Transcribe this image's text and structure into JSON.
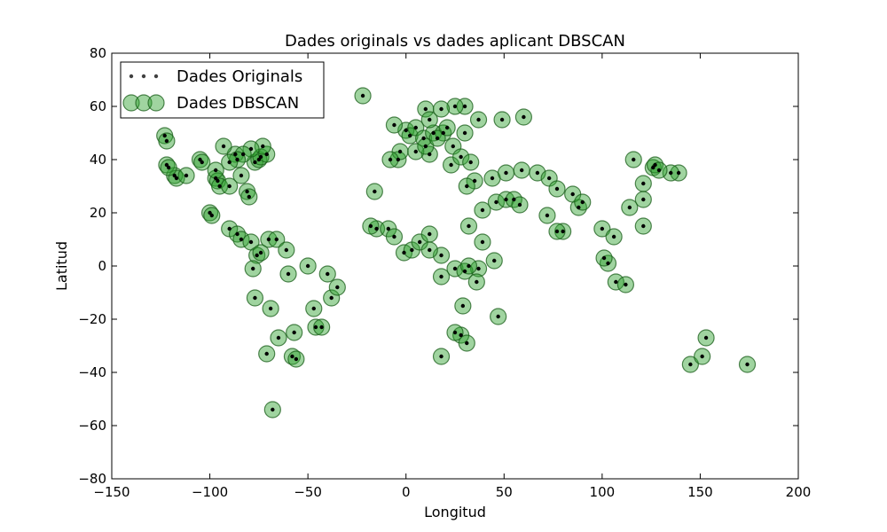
{
  "chart_data": {
    "type": "scatter",
    "title": "Dades originals vs dades aplicant DBSCAN",
    "xlabel": "Longitud",
    "ylabel": "Latitud",
    "xlim": [
      -150,
      200
    ],
    "ylim": [
      -80,
      80
    ],
    "xticks": [
      "−150",
      "−100",
      "−50",
      "0",
      "50",
      "100",
      "150",
      "200"
    ],
    "yticks": [
      "80",
      "60",
      "40",
      "20",
      "0",
      "−20",
      "−40",
      "−60",
      "−80"
    ],
    "grid": false,
    "legend_position": "top-left",
    "series": [
      {
        "name": "Dades Originals",
        "color": "#000000",
        "marker": "small-dot",
        "points": [
          [
            -123,
            49
          ],
          [
            -122,
            47
          ],
          [
            -118,
            34
          ],
          [
            -117,
            33
          ],
          [
            -122,
            38
          ],
          [
            -121,
            37
          ],
          [
            -112,
            34
          ],
          [
            -105,
            40
          ],
          [
            -104,
            39
          ],
          [
            -97,
            33
          ],
          [
            -96,
            32
          ],
          [
            -95,
            30
          ],
          [
            -90,
            30
          ],
          [
            -87,
            42
          ],
          [
            -84,
            34
          ],
          [
            -81,
            28
          ],
          [
            -80,
            26
          ],
          [
            -77,
            39
          ],
          [
            -75,
            40
          ],
          [
            -74,
            41
          ],
          [
            -71,
            42
          ],
          [
            -73,
            45
          ],
          [
            -79,
            44
          ],
          [
            -83,
            42
          ],
          [
            -86,
            40
          ],
          [
            -90,
            39
          ],
          [
            -93,
            45
          ],
          [
            -97,
            36
          ],
          [
            -100,
            20
          ],
          [
            -99,
            19
          ],
          [
            -90,
            14
          ],
          [
            -86,
            12
          ],
          [
            -84,
            10
          ],
          [
            -79,
            9
          ],
          [
            -76,
            4
          ],
          [
            -74,
            5
          ],
          [
            -70,
            10
          ],
          [
            -66,
            10
          ],
          [
            -61,
            6
          ],
          [
            -78,
            -1
          ],
          [
            -77,
            -12
          ],
          [
            -69,
            -16
          ],
          [
            -57,
            -25
          ],
          [
            -58,
            -34
          ],
          [
            -56,
            -35
          ],
          [
            -71,
            -33
          ],
          [
            -65,
            -27
          ],
          [
            -47,
            -16
          ],
          [
            -46,
            -23
          ],
          [
            -43,
            -23
          ],
          [
            -38,
            -12
          ],
          [
            -35,
            -8
          ],
          [
            -40,
            -3
          ],
          [
            -50,
            0
          ],
          [
            -60,
            -3
          ],
          [
            -68,
            -54
          ],
          [
            -22,
            64
          ],
          [
            -16,
            28
          ],
          [
            -15,
            14
          ],
          [
            -4,
            40
          ],
          [
            -3,
            43
          ],
          [
            0,
            51
          ],
          [
            2,
            49
          ],
          [
            5,
            52
          ],
          [
            9,
            48
          ],
          [
            12,
            42
          ],
          [
            14,
            50
          ],
          [
            19,
            50
          ],
          [
            24,
            45
          ],
          [
            21,
            52
          ],
          [
            30,
            50
          ],
          [
            30,
            60
          ],
          [
            37,
            55
          ],
          [
            49,
            55
          ],
          [
            60,
            56
          ],
          [
            25,
            60
          ],
          [
            18,
            59
          ],
          [
            10,
            59
          ],
          [
            12,
            55
          ],
          [
            -6,
            53
          ],
          [
            -8,
            40
          ],
          [
            5,
            43
          ],
          [
            10,
            45
          ],
          [
            16,
            48
          ],
          [
            23,
            38
          ],
          [
            28,
            41
          ],
          [
            33,
            39
          ],
          [
            35,
            32
          ],
          [
            31,
            30
          ],
          [
            39,
            21
          ],
          [
            46,
            24
          ],
          [
            51,
            25
          ],
          [
            55,
            25
          ],
          [
            58,
            23
          ],
          [
            44,
            33
          ],
          [
            51,
            35
          ],
          [
            59,
            36
          ],
          [
            67,
            35
          ],
          [
            73,
            33
          ],
          [
            77,
            29
          ],
          [
            72,
            19
          ],
          [
            80,
            13
          ],
          [
            77,
            13
          ],
          [
            88,
            22
          ],
          [
            85,
            27
          ],
          [
            90,
            24
          ],
          [
            100,
            14
          ],
          [
            106,
            11
          ],
          [
            114,
            22
          ],
          [
            121,
            31
          ],
          [
            116,
            40
          ],
          [
            126,
            37
          ],
          [
            127,
            38
          ],
          [
            139,
            35
          ],
          [
            135,
            35
          ],
          [
            129,
            36
          ],
          [
            121,
            25
          ],
          [
            121,
            15
          ],
          [
            107,
            -6
          ],
          [
            112,
            -7
          ],
          [
            103,
            1
          ],
          [
            101,
            3
          ],
          [
            145,
            -37
          ],
          [
            151,
            -34
          ],
          [
            153,
            -27
          ],
          [
            174,
            -37
          ],
          [
            -18,
            15
          ],
          [
            -1,
            5
          ],
          [
            3,
            6
          ],
          [
            7,
            9
          ],
          [
            12,
            12
          ],
          [
            18,
            -4
          ],
          [
            25,
            -1
          ],
          [
            37,
            -1
          ],
          [
            47,
            -19
          ],
          [
            30,
            -2
          ],
          [
            32,
            0
          ],
          [
            28,
            -26
          ],
          [
            31,
            -29
          ],
          [
            18,
            -34
          ],
          [
            25,
            -25
          ],
          [
            36,
            -6
          ],
          [
            39,
            9
          ],
          [
            45,
            2
          ],
          [
            32,
            15
          ],
          [
            29,
            -15
          ],
          [
            18,
            4
          ],
          [
            12,
            6
          ],
          [
            -9,
            14
          ],
          [
            -6,
            11
          ]
        ]
      },
      {
        "name": "Dades DBSCAN",
        "color": "#2ca02c",
        "marker": "large-circle",
        "points": [
          [
            -123,
            49
          ],
          [
            -122,
            47
          ],
          [
            -118,
            34
          ],
          [
            -117,
            33
          ],
          [
            -122,
            38
          ],
          [
            -121,
            37
          ],
          [
            -112,
            34
          ],
          [
            -105,
            40
          ],
          [
            -104,
            39
          ],
          [
            -97,
            33
          ],
          [
            -96,
            32
          ],
          [
            -95,
            30
          ],
          [
            -90,
            30
          ],
          [
            -87,
            42
          ],
          [
            -84,
            34
          ],
          [
            -81,
            28
          ],
          [
            -80,
            26
          ],
          [
            -77,
            39
          ],
          [
            -75,
            40
          ],
          [
            -74,
            41
          ],
          [
            -71,
            42
          ],
          [
            -73,
            45
          ],
          [
            -79,
            44
          ],
          [
            -83,
            42
          ],
          [
            -86,
            40
          ],
          [
            -90,
            39
          ],
          [
            -93,
            45
          ],
          [
            -97,
            36
          ],
          [
            -100,
            20
          ],
          [
            -99,
            19
          ],
          [
            -90,
            14
          ],
          [
            -86,
            12
          ],
          [
            -84,
            10
          ],
          [
            -79,
            9
          ],
          [
            -76,
            4
          ],
          [
            -74,
            5
          ],
          [
            -70,
            10
          ],
          [
            -66,
            10
          ],
          [
            -61,
            6
          ],
          [
            -78,
            -1
          ],
          [
            -77,
            -12
          ],
          [
            -69,
            -16
          ],
          [
            -57,
            -25
          ],
          [
            -58,
            -34
          ],
          [
            -56,
            -35
          ],
          [
            -71,
            -33
          ],
          [
            -65,
            -27
          ],
          [
            -47,
            -16
          ],
          [
            -46,
            -23
          ],
          [
            -43,
            -23
          ],
          [
            -38,
            -12
          ],
          [
            -35,
            -8
          ],
          [
            -40,
            -3
          ],
          [
            -50,
            0
          ],
          [
            -60,
            -3
          ],
          [
            -68,
            -54
          ],
          [
            -22,
            64
          ],
          [
            -16,
            28
          ],
          [
            -15,
            14
          ],
          [
            -4,
            40
          ],
          [
            -3,
            43
          ],
          [
            0,
            51
          ],
          [
            2,
            49
          ],
          [
            5,
            52
          ],
          [
            9,
            48
          ],
          [
            12,
            42
          ],
          [
            14,
            50
          ],
          [
            19,
            50
          ],
          [
            24,
            45
          ],
          [
            21,
            52
          ],
          [
            30,
            50
          ],
          [
            30,
            60
          ],
          [
            37,
            55
          ],
          [
            49,
            55
          ],
          [
            60,
            56
          ],
          [
            25,
            60
          ],
          [
            18,
            59
          ],
          [
            10,
            59
          ],
          [
            12,
            55
          ],
          [
            -6,
            53
          ],
          [
            -8,
            40
          ],
          [
            5,
            43
          ],
          [
            10,
            45
          ],
          [
            16,
            48
          ],
          [
            23,
            38
          ],
          [
            28,
            41
          ],
          [
            33,
            39
          ],
          [
            35,
            32
          ],
          [
            31,
            30
          ],
          [
            39,
            21
          ],
          [
            46,
            24
          ],
          [
            51,
            25
          ],
          [
            55,
            25
          ],
          [
            58,
            23
          ],
          [
            44,
            33
          ],
          [
            51,
            35
          ],
          [
            59,
            36
          ],
          [
            67,
            35
          ],
          [
            73,
            33
          ],
          [
            77,
            29
          ],
          [
            72,
            19
          ],
          [
            80,
            13
          ],
          [
            77,
            13
          ],
          [
            88,
            22
          ],
          [
            85,
            27
          ],
          [
            90,
            24
          ],
          [
            100,
            14
          ],
          [
            106,
            11
          ],
          [
            114,
            22
          ],
          [
            121,
            31
          ],
          [
            116,
            40
          ],
          [
            126,
            37
          ],
          [
            127,
            38
          ],
          [
            139,
            35
          ],
          [
            135,
            35
          ],
          [
            129,
            36
          ],
          [
            121,
            25
          ],
          [
            121,
            15
          ],
          [
            107,
            -6
          ],
          [
            112,
            -7
          ],
          [
            103,
            1
          ],
          [
            101,
            3
          ],
          [
            145,
            -37
          ],
          [
            151,
            -34
          ],
          [
            153,
            -27
          ],
          [
            174,
            -37
          ],
          [
            -18,
            15
          ],
          [
            -1,
            5
          ],
          [
            3,
            6
          ],
          [
            7,
            9
          ],
          [
            12,
            12
          ],
          [
            18,
            -4
          ],
          [
            25,
            -1
          ],
          [
            37,
            -1
          ],
          [
            47,
            -19
          ],
          [
            30,
            -2
          ],
          [
            32,
            0
          ],
          [
            28,
            -26
          ],
          [
            31,
            -29
          ],
          [
            18,
            -34
          ],
          [
            25,
            -25
          ],
          [
            36,
            -6
          ],
          [
            39,
            9
          ],
          [
            45,
            2
          ],
          [
            32,
            15
          ],
          [
            29,
            -15
          ],
          [
            18,
            4
          ],
          [
            12,
            6
          ],
          [
            -9,
            14
          ],
          [
            -6,
            11
          ]
        ]
      }
    ]
  }
}
